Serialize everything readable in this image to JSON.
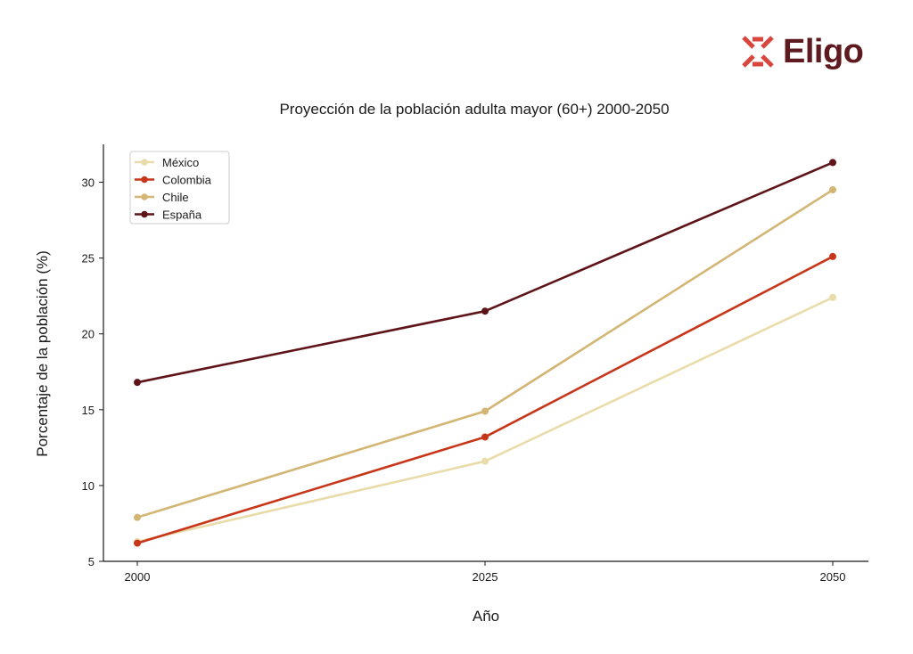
{
  "brand": {
    "name": "Eligo",
    "logo_icon": "eligo-x-mark-icon",
    "color": "#5e1a1f",
    "mark_color": "#d9463e"
  },
  "chart_data": {
    "type": "line",
    "title": "Proyección de la población adulta mayor (60+) 2000-2050",
    "xlabel": "Año",
    "ylabel": "Porcentaje de la población (%)",
    "categories": [
      "2000",
      "2025",
      "2050"
    ],
    "ylim": [
      5,
      32.5
    ],
    "yticks": [
      5,
      10,
      15,
      20,
      25,
      30
    ],
    "grid": false,
    "legend_position": "top-left",
    "series": [
      {
        "name": "México",
        "color": "#eadcaa",
        "values": [
          6.3,
          11.6,
          22.4
        ]
      },
      {
        "name": "Colombia",
        "color": "#c8361a",
        "values": [
          6.2,
          13.2,
          25.1
        ]
      },
      {
        "name": "Chile",
        "color": "#d3b574",
        "values": [
          7.9,
          14.9,
          29.5
        ]
      },
      {
        "name": "España",
        "color": "#5e1418",
        "values": [
          16.8,
          21.5,
          31.3
        ]
      }
    ]
  }
}
